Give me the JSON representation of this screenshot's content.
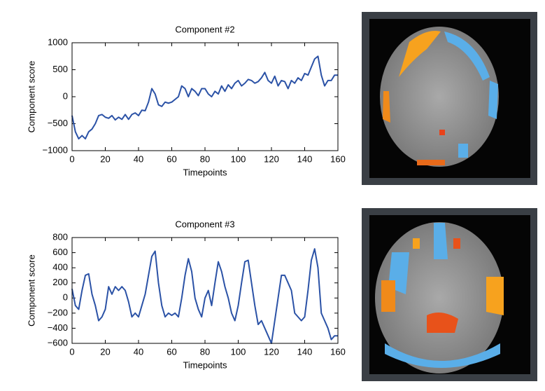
{
  "chart_data": [
    {
      "type": "line",
      "title": "Component #2",
      "xlabel": "Timepoints",
      "ylabel": "Component score",
      "x": [
        0,
        2,
        4,
        6,
        8,
        10,
        12,
        14,
        16,
        18,
        20,
        22,
        24,
        26,
        28,
        30,
        32,
        34,
        36,
        38,
        40,
        42,
        44,
        46,
        48,
        50,
        52,
        54,
        56,
        58,
        60,
        62,
        64,
        66,
        68,
        70,
        72,
        74,
        76,
        78,
        80,
        82,
        84,
        86,
        88,
        90,
        92,
        94,
        96,
        98,
        100,
        102,
        104,
        106,
        108,
        110,
        112,
        114,
        116,
        118,
        120,
        122,
        124,
        126,
        128,
        130,
        132,
        134,
        136,
        138,
        140,
        142,
        144,
        146,
        148,
        150,
        152,
        154,
        156,
        158,
        160
      ],
      "series": [
        {
          "color": "#2b52a6",
          "values": [
            -350,
            -650,
            -780,
            -720,
            -780,
            -650,
            -600,
            -500,
            -350,
            -330,
            -380,
            -400,
            -350,
            -430,
            -380,
            -420,
            -330,
            -420,
            -330,
            -300,
            -350,
            -250,
            -260,
            -100,
            150,
            50,
            -150,
            -180,
            -100,
            -120,
            -100,
            -50,
            0,
            200,
            150,
            0,
            150,
            100,
            20,
            150,
            150,
            50,
            0,
            100,
            50,
            200,
            100,
            220,
            150,
            250,
            300,
            200,
            250,
            320,
            300,
            250,
            280,
            350,
            450,
            300,
            250,
            380,
            200,
            300,
            280,
            150,
            300,
            250,
            350,
            300,
            430,
            400,
            550,
            700,
            750,
            400,
            200,
            300,
            300,
            400,
            400
          ]
        }
      ],
      "xlim": [
        0,
        160
      ],
      "xticks": [
        0,
        20,
        40,
        60,
        80,
        100,
        120,
        140,
        160
      ],
      "ylim": [
        -1000,
        1000
      ],
      "yticks": [
        {
          "value": -1000,
          "label": "−1000"
        },
        {
          "value": -500,
          "label": "−500"
        },
        0,
        500,
        1000
      ]
    },
    {
      "type": "line",
      "title": "Component #3",
      "xlabel": "Timepoints",
      "ylabel": "Component score",
      "x": [
        0,
        2,
        4,
        6,
        8,
        10,
        12,
        14,
        16,
        18,
        20,
        22,
        24,
        26,
        28,
        30,
        32,
        34,
        36,
        38,
        40,
        42,
        44,
        46,
        48,
        50,
        52,
        54,
        56,
        58,
        60,
        62,
        64,
        66,
        68,
        70,
        72,
        74,
        76,
        78,
        80,
        82,
        84,
        86,
        88,
        90,
        92,
        94,
        96,
        98,
        100,
        102,
        104,
        106,
        108,
        110,
        112,
        114,
        116,
        118,
        120,
        122,
        124,
        126,
        128,
        130,
        132,
        134,
        136,
        138,
        140,
        142,
        144,
        146,
        148,
        150,
        152,
        154,
        156,
        158,
        160
      ],
      "series": [
        {
          "color": "#2b52a6",
          "values": [
            120,
            -100,
            -150,
            100,
            300,
            320,
            50,
            -100,
            -300,
            -250,
            -150,
            150,
            50,
            150,
            100,
            150,
            100,
            -50,
            -250,
            -200,
            -250,
            -100,
            50,
            300,
            550,
            620,
            200,
            -100,
            -250,
            -200,
            -230,
            -200,
            -250,
            0,
            300,
            520,
            350,
            0,
            -150,
            -250,
            0,
            100,
            -100,
            200,
            480,
            350,
            150,
            0,
            -200,
            -300,
            -100,
            200,
            480,
            500,
            200,
            -100,
            -350,
            -300,
            -400,
            -500,
            -600,
            -300,
            0,
            300,
            300,
            200,
            100,
            -200,
            -250,
            -300,
            -250,
            100,
            500,
            650,
            400,
            -200,
            -300,
            -400,
            -550,
            -500,
            -500
          ]
        }
      ],
      "xlim": [
        0,
        160
      ],
      "xticks": [
        0,
        20,
        40,
        60,
        80,
        100,
        120,
        140,
        160
      ],
      "ylim": [
        -600,
        800
      ],
      "yticks": [
        {
          "value": -600,
          "label": "−600"
        },
        {
          "value": -400,
          "label": "−400"
        },
        {
          "value": -200,
          "label": "−200"
        },
        0,
        200,
        400,
        600,
        800
      ]
    }
  ]
}
